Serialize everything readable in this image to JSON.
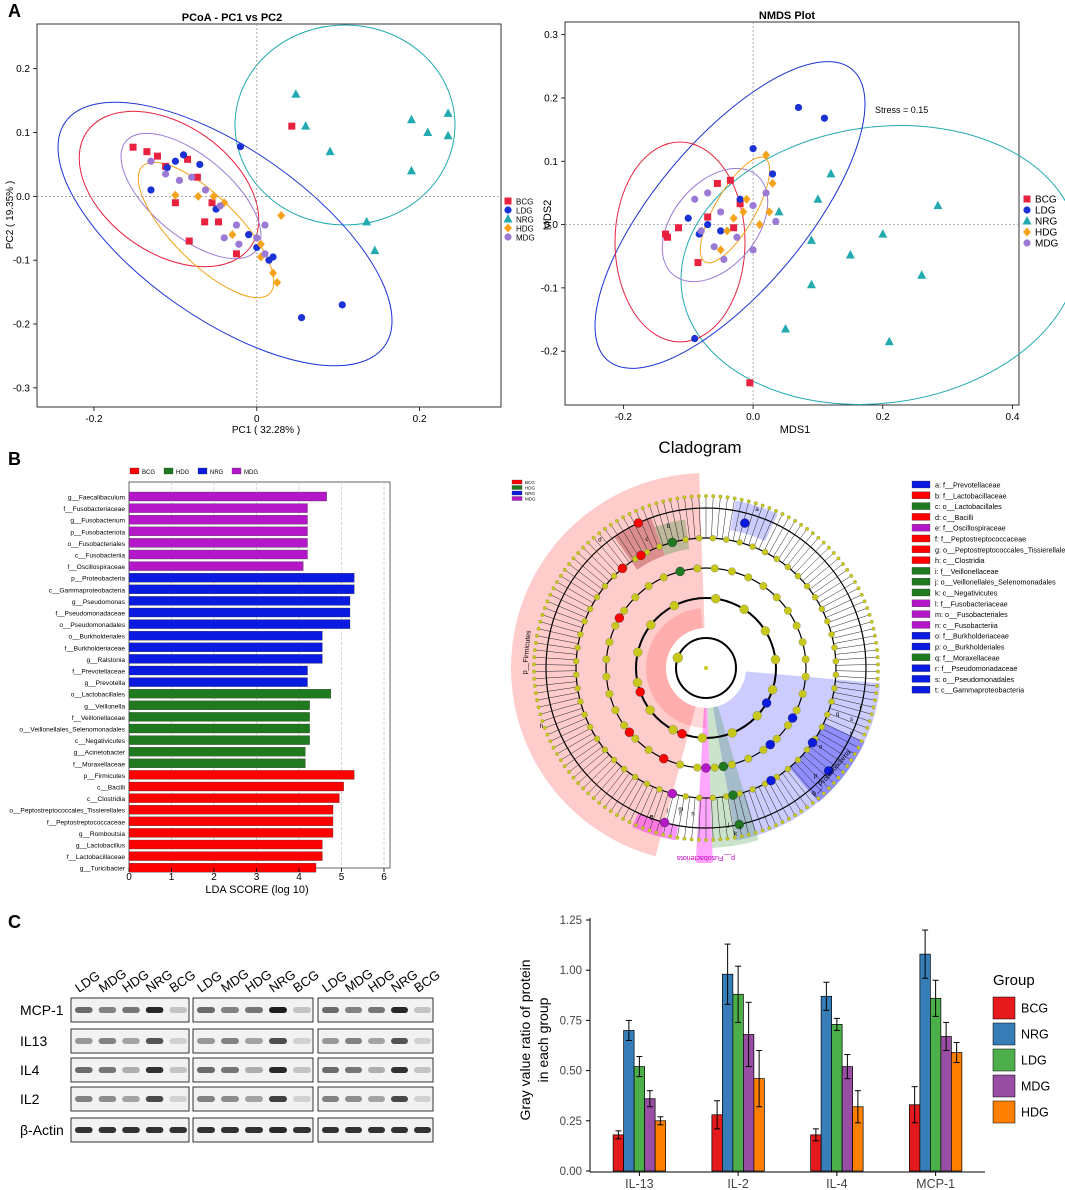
{
  "panels": {
    "A": "A",
    "B": "B",
    "C": "C"
  },
  "colors": {
    "BCG": "#e8213f",
    "LDG": "#1a31d6",
    "NRG": "#22aab0",
    "HDG": "#f6a31c",
    "MDG": "#9b7ad6",
    "lda_BCG": "#ff0000",
    "lda_HDG": "#1f7a1f",
    "lda_NRG": "#0a1ae0",
    "lda_MDG": "#b417c8",
    "bar_BCG": "#e41a1c",
    "bar_NRG": "#377eb8",
    "bar_LDG": "#4daf4a",
    "bar_MDG": "#984ea3",
    "bar_HDG": "#ff7f00"
  },
  "chart_data": [
    {
      "id": "pcoa",
      "type": "scatter",
      "title": "PCoA - PC1 vs PC2",
      "xlabel": "PC1 ( 32.28% )",
      "ylabel": "PC2 ( 19.35% )",
      "xlim": [
        -0.27,
        0.3
      ],
      "ylim": [
        -0.33,
        0.27
      ],
      "xticks": [
        "-0.2",
        "0",
        "0.2"
      ],
      "xtick_values": [
        -0.2,
        0,
        0.2
      ],
      "yticks": [
        "0.2",
        "0.1",
        "0.0",
        "-0.1",
        "-0.2",
        "-0.3"
      ],
      "ytick_values": [
        0.2,
        0.1,
        0.0,
        -0.1,
        -0.2,
        -0.3
      ],
      "legend": [
        "BCG",
        "LDG",
        "NRG",
        "HDG",
        "MDG"
      ],
      "series": [
        {
          "name": "BCG",
          "marker": "square",
          "points": [
            [
              -0.152,
              0.077
            ],
            [
              -0.135,
              0.07
            ],
            [
              -0.122,
              0.063
            ],
            [
              -0.112,
              0.047
            ],
            [
              -0.085,
              0.058
            ],
            [
              -0.073,
              0.03
            ],
            [
              -0.1,
              -0.01
            ],
            [
              -0.055,
              -0.01
            ],
            [
              -0.064,
              -0.04
            ],
            [
              -0.047,
              -0.04
            ],
            [
              -0.083,
              -0.07
            ],
            [
              -0.025,
              -0.09
            ],
            [
              0.043,
              0.11
            ]
          ]
        },
        {
          "name": "LDG",
          "marker": "circle",
          "points": [
            [
              -0.13,
              0.01
            ],
            [
              -0.11,
              0.045
            ],
            [
              -0.1,
              0.055
            ],
            [
              -0.09,
              0.065
            ],
            [
              -0.07,
              0.05
            ],
            [
              -0.02,
              0.078
            ],
            [
              -0.05,
              -0.02
            ],
            [
              -0.01,
              -0.06
            ],
            [
              0.0,
              -0.08
            ],
            [
              0.02,
              -0.095
            ],
            [
              0.055,
              -0.19
            ],
            [
              0.105,
              -0.17
            ],
            [
              0.015,
              -0.1
            ]
          ]
        },
        {
          "name": "NRG",
          "marker": "triangle",
          "points": [
            [
              0.048,
              0.16
            ],
            [
              0.06,
              0.11
            ],
            [
              0.09,
              0.07
            ],
            [
              0.19,
              0.12
            ],
            [
              0.21,
              0.1
            ],
            [
              0.235,
              0.13
            ],
            [
              0.235,
              0.095
            ],
            [
              0.19,
              0.04
            ],
            [
              0.135,
              -0.04
            ],
            [
              0.145,
              -0.085
            ]
          ]
        },
        {
          "name": "HDG",
          "marker": "diamond",
          "points": [
            [
              -0.1,
              0.002
            ],
            [
              -0.072,
              0.0
            ],
            [
              -0.053,
              0.0
            ],
            [
              -0.04,
              -0.01
            ],
            [
              0.03,
              -0.03
            ],
            [
              -0.03,
              -0.06
            ],
            [
              0.005,
              -0.075
            ],
            [
              0.005,
              -0.095
            ],
            [
              0.02,
              -0.12
            ],
            [
              0.025,
              -0.135
            ]
          ]
        },
        {
          "name": "MDG",
          "marker": "circle",
          "points": [
            [
              -0.13,
              0.055
            ],
            [
              -0.112,
              0.035
            ],
            [
              -0.095,
              0.025
            ],
            [
              -0.08,
              0.03
            ],
            [
              -0.063,
              0.01
            ],
            [
              -0.045,
              -0.015
            ],
            [
              -0.025,
              -0.045
            ],
            [
              -0.04,
              -0.065
            ],
            [
              -0.022,
              -0.075
            ],
            [
              0.0,
              -0.065
            ],
            [
              0.01,
              -0.045
            ],
            [
              0.01,
              -0.09
            ]
          ]
        }
      ]
    },
    {
      "id": "nmds",
      "type": "scatter",
      "title": "NMDS Plot",
      "xlabel": "MDS1",
      "ylabel": "MDS2",
      "annotation": "Stress = 0.15",
      "xlim": [
        -0.29,
        0.41
      ],
      "ylim": [
        -0.285,
        0.32
      ],
      "xticks": [
        "-0.2",
        "0.0",
        "0.2",
        "0.4"
      ],
      "xtick_values": [
        -0.2,
        0.0,
        0.2,
        0.4
      ],
      "yticks": [
        "0.3",
        "0.2",
        "0.1",
        "0.0",
        "-0.1",
        "-0.2"
      ],
      "ytick_values": [
        0.3,
        0.2,
        0.1,
        0.0,
        -0.1,
        -0.2
      ],
      "legend": [
        "BCG",
        "LDG",
        "NRG",
        "HDG",
        "MDG"
      ],
      "series": [
        {
          "name": "BCG",
          "marker": "square",
          "points": [
            [
              -0.135,
              -0.015
            ],
            [
              -0.132,
              -0.02
            ],
            [
              -0.115,
              -0.005
            ],
            [
              -0.085,
              -0.06
            ],
            [
              -0.07,
              0.012
            ],
            [
              -0.055,
              0.065
            ],
            [
              -0.035,
              0.07
            ],
            [
              -0.02,
              0.033
            ],
            [
              -0.03,
              -0.005
            ],
            [
              -0.005,
              -0.25
            ]
          ]
        },
        {
          "name": "LDG",
          "marker": "circle",
          "points": [
            [
              -0.1,
              0.01
            ],
            [
              -0.083,
              -0.015
            ],
            [
              -0.07,
              0.0
            ],
            [
              -0.05,
              -0.01
            ],
            [
              0.0,
              0.12
            ],
            [
              0.03,
              0.08
            ],
            [
              0.07,
              0.185
            ],
            [
              0.11,
              0.168
            ],
            [
              -0.02,
              0.04
            ],
            [
              -0.09,
              -0.18
            ]
          ]
        },
        {
          "name": "NRG",
          "marker": "triangle",
          "points": [
            [
              0.12,
              0.08
            ],
            [
              0.1,
              0.04
            ],
            [
              0.04,
              0.02
            ],
            [
              0.09,
              -0.025
            ],
            [
              0.09,
              -0.095
            ],
            [
              0.15,
              -0.048
            ],
            [
              0.2,
              -0.015
            ],
            [
              0.26,
              -0.08
            ],
            [
              0.285,
              0.03
            ],
            [
              0.05,
              -0.165
            ],
            [
              0.21,
              -0.185
            ]
          ]
        },
        {
          "name": "HDG",
          "marker": "diamond",
          "points": [
            [
              0.02,
              0.11
            ],
            [
              0.03,
              0.065
            ],
            [
              -0.01,
              0.04
            ],
            [
              -0.015,
              0.02
            ],
            [
              -0.03,
              0.01
            ],
            [
              0.01,
              0.0
            ],
            [
              0.025,
              0.02
            ],
            [
              -0.04,
              -0.01
            ],
            [
              -0.05,
              -0.04
            ]
          ]
        },
        {
          "name": "MDG",
          "marker": "circle",
          "points": [
            [
              -0.09,
              0.04
            ],
            [
              -0.07,
              0.05
            ],
            [
              -0.05,
              0.02
            ],
            [
              -0.06,
              -0.035
            ],
            [
              -0.025,
              -0.02
            ],
            [
              0.0,
              0.03
            ],
            [
              0.02,
              0.05
            ],
            [
              0.035,
              0.005
            ],
            [
              0.0,
              -0.04
            ],
            [
              -0.045,
              -0.055
            ],
            [
              -0.08,
              -0.01
            ]
          ]
        }
      ]
    },
    {
      "id": "lda",
      "type": "bar",
      "orientation": "horizontal",
      "xlabel": "LDA SCORE (log 10)",
      "xlim": [
        0,
        6
      ],
      "xticks": [
        "0",
        "1",
        "2",
        "3",
        "4",
        "5",
        "6"
      ],
      "xtick_values": [
        0,
        1,
        2,
        3,
        4,
        5,
        6
      ],
      "legend": [
        "BCG",
        "HDG",
        "NRG",
        "MDG"
      ],
      "bars": [
        {
          "label": "g__Faecalibaculum",
          "value": 4.65,
          "group": "MDG"
        },
        {
          "label": "f__Fusobacteriaceae",
          "value": 4.2,
          "group": "MDG"
        },
        {
          "label": "g__Fusobacterium",
          "value": 4.2,
          "group": "MDG"
        },
        {
          "label": "p__Fusobacteriota",
          "value": 4.2,
          "group": "MDG"
        },
        {
          "label": "o__Fusobacteriales",
          "value": 4.2,
          "group": "MDG"
        },
        {
          "label": "c__Fusobacteriia",
          "value": 4.2,
          "group": "MDG"
        },
        {
          "label": "f__Oscillospiraceae",
          "value": 4.1,
          "group": "MDG"
        },
        {
          "label": "p__Proteobacteria",
          "value": 5.3,
          "group": "NRG"
        },
        {
          "label": "c__Gammaproteobacteria",
          "value": 5.3,
          "group": "NRG"
        },
        {
          "label": "g__Pseudomonas",
          "value": 5.2,
          "group": "NRG"
        },
        {
          "label": "f__Pseudomonadaceae",
          "value": 5.2,
          "group": "NRG"
        },
        {
          "label": "o__Pseudomonadales",
          "value": 5.2,
          "group": "NRG"
        },
        {
          "label": "o__Burkholderiales",
          "value": 4.55,
          "group": "NRG"
        },
        {
          "label": "f__Burkholderiaceae",
          "value": 4.55,
          "group": "NRG"
        },
        {
          "label": "g__Ralstonia",
          "value": 4.55,
          "group": "NRG"
        },
        {
          "label": "f__Prevotellaceae",
          "value": 4.2,
          "group": "NRG"
        },
        {
          "label": "g__Prevotella",
          "value": 4.2,
          "group": "NRG"
        },
        {
          "label": "o__Lactobacillales",
          "value": 4.75,
          "group": "HDG"
        },
        {
          "label": "g__Veillonella",
          "value": 4.25,
          "group": "HDG"
        },
        {
          "label": "f__Veillonellaceae",
          "value": 4.25,
          "group": "HDG"
        },
        {
          "label": "o__Veillonellales_Selenomonadales",
          "value": 4.25,
          "group": "HDG"
        },
        {
          "label": "c__Negativicutes",
          "value": 4.25,
          "group": "HDG"
        },
        {
          "label": "g__Acinetobacter",
          "value": 4.15,
          "group": "HDG"
        },
        {
          "label": "f__Moraxellaceae",
          "value": 4.15,
          "group": "HDG"
        },
        {
          "label": "p__Firmicutes",
          "value": 5.3,
          "group": "BCG"
        },
        {
          "label": "c__Bacilli",
          "value": 5.05,
          "group": "BCG"
        },
        {
          "label": "c__Clostridia",
          "value": 4.95,
          "group": "BCG"
        },
        {
          "label": "o__Peptostreptococcales_Tissierellales",
          "value": 4.8,
          "group": "BCG"
        },
        {
          "label": "f__Peptostreptococcaceae",
          "value": 4.8,
          "group": "BCG"
        },
        {
          "label": "g__Romboutsia",
          "value": 4.8,
          "group": "BCG"
        },
        {
          "label": "g__Lactobacillus",
          "value": 4.55,
          "group": "BCG"
        },
        {
          "label": "f__Lactobacillaceae",
          "value": 4.55,
          "group": "BCG"
        },
        {
          "label": "g__Turicibacter",
          "value": 4.4,
          "group": "BCG"
        }
      ]
    },
    {
      "id": "cladogram",
      "type": "other",
      "title": "Cladogram",
      "small_legend": [
        "BCG",
        "HDG",
        "NRG",
        "MDG"
      ],
      "phylum_labels": [
        "p__Firmicutes",
        "p__Proteobacteria",
        "p__Fusobacteriota"
      ],
      "sector_letters": [
        "a",
        "b",
        "c",
        "d",
        "e",
        "f",
        "g",
        "h",
        "i",
        "j",
        "k",
        "l",
        "m",
        "n",
        "o",
        "p",
        "q",
        "r",
        "s",
        "t"
      ],
      "legend": [
        {
          "key": "a",
          "text": "a: f__Prevotellaceae",
          "group": "NRG"
        },
        {
          "key": "b",
          "text": "b: f__Lactobacillaceae",
          "group": "BCG"
        },
        {
          "key": "c",
          "text": "c: o__Lactobacillales",
          "group": "HDG"
        },
        {
          "key": "d",
          "text": "d: c__Bacilli",
          "group": "BCG"
        },
        {
          "key": "e",
          "text": "e: f__Oscillospiraceae",
          "group": "MDG"
        },
        {
          "key": "f",
          "text": "f: f__Peptostreptococcaceae",
          "group": "BCG"
        },
        {
          "key": "g",
          "text": "g: o__Peptostreptococcales_Tissierellales",
          "group": "BCG"
        },
        {
          "key": "h",
          "text": "h: c__Clostridia",
          "group": "BCG"
        },
        {
          "key": "i",
          "text": "i: f__Veillonellaceae",
          "group": "HDG"
        },
        {
          "key": "j",
          "text": "j: o__Veillonellales_Selenomonadales",
          "group": "HDG"
        },
        {
          "key": "k",
          "text": "k: c__Negativicutes",
          "group": "HDG"
        },
        {
          "key": "l",
          "text": "l: f__Fusobacteriaceae",
          "group": "MDG"
        },
        {
          "key": "m",
          "text": "m: o__Fusobacteriales",
          "group": "MDG"
        },
        {
          "key": "n",
          "text": "n: c__Fusobacteriia",
          "group": "MDG"
        },
        {
          "key": "o",
          "text": "o: f__Burkholderiaceae",
          "group": "NRG"
        },
        {
          "key": "p",
          "text": "p: o__Burkholderiales",
          "group": "NRG"
        },
        {
          "key": "q",
          "text": "q: f__Moraxellaceae",
          "group": "HDG"
        },
        {
          "key": "r",
          "text": "r: f__Pseudomonadaceae",
          "group": "NRG"
        },
        {
          "key": "s",
          "text": "s: o__Pseudomonadales",
          "group": "NRG"
        },
        {
          "key": "t",
          "text": "t: c__Gammaproteobacteria",
          "group": "NRG"
        }
      ]
    },
    {
      "id": "western_blot",
      "type": "other",
      "lane_labels": [
        "LDG",
        "MDG",
        "HDG",
        "NRG",
        "BCG"
      ],
      "rows": [
        "MCP-1",
        "IL13",
        "IL4",
        "IL2",
        "β-Actin"
      ],
      "blocks": 3
    },
    {
      "id": "grey_value",
      "type": "bar",
      "ylabel": "Gray value ratio of protein\nin each group",
      "ylabel_lines": [
        "Gray value ratio of protein",
        "in each group"
      ],
      "categories": [
        "IL-13",
        "IL-2",
        "IL-4",
        "MCP-1"
      ],
      "ylim": [
        0,
        1.25
      ],
      "yticks": [
        "0.00",
        "0.25",
        "0.50",
        "0.75",
        "1.00",
        "1.25"
      ],
      "ytick_values": [
        0,
        0.25,
        0.5,
        0.75,
        1.0,
        1.25
      ],
      "legend_title": "Group",
      "series": [
        {
          "name": "BCG",
          "values": [
            0.18,
            0.28,
            0.18,
            0.33
          ],
          "errors": [
            0.02,
            0.07,
            0.03,
            0.09
          ]
        },
        {
          "name": "NRG",
          "values": [
            0.7,
            0.98,
            0.87,
            1.08
          ],
          "errors": [
            0.05,
            0.15,
            0.07,
            0.12
          ]
        },
        {
          "name": "LDG",
          "values": [
            0.52,
            0.88,
            0.73,
            0.86
          ],
          "errors": [
            0.05,
            0.14,
            0.03,
            0.09
          ]
        },
        {
          "name": "MDG",
          "values": [
            0.36,
            0.68,
            0.52,
            0.67
          ],
          "errors": [
            0.04,
            0.16,
            0.06,
            0.07
          ]
        },
        {
          "name": "HDG",
          "values": [
            0.25,
            0.46,
            0.32,
            0.59
          ],
          "errors": [
            0.02,
            0.14,
            0.08,
            0.05
          ]
        }
      ]
    }
  ]
}
